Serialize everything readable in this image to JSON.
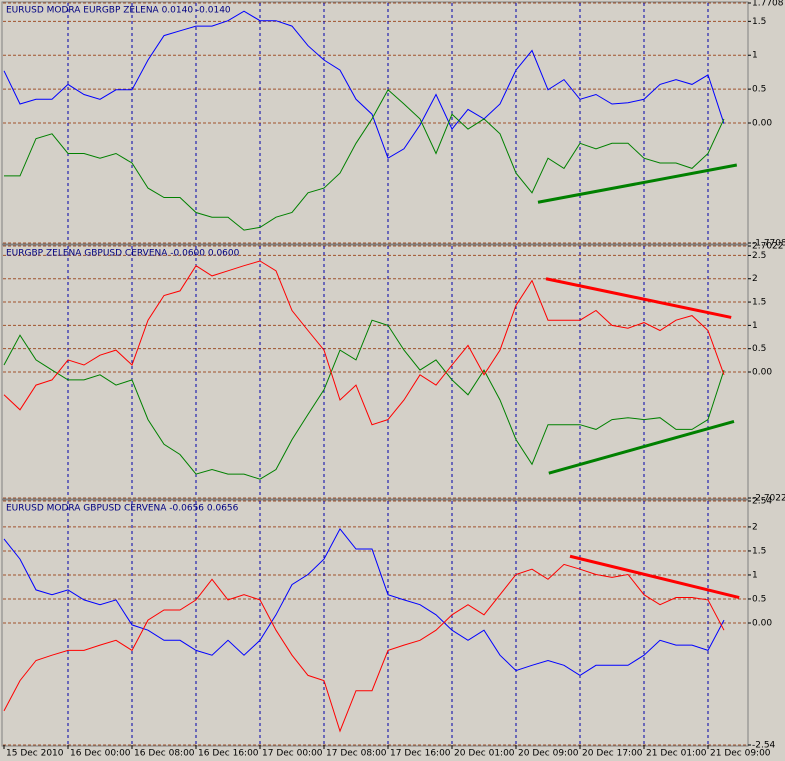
{
  "chart_data": [
    {
      "type": "line",
      "title": "EURUSD MODRA   EURGBP ZELENA  0.0140 -0.0140",
      "x": [
        0,
        2,
        4,
        6,
        8,
        10,
        12,
        14,
        16,
        18,
        20,
        22,
        24,
        26,
        28,
        30,
        32,
        34,
        36,
        38,
        40,
        42,
        44,
        46,
        48,
        50,
        52,
        54,
        56,
        58,
        60,
        62,
        64,
        66,
        68,
        70,
        72,
        74,
        76,
        78,
        80,
        82,
        84,
        86,
        88,
        90
      ],
      "series": [
        {
          "color": "#0000ff",
          "values": [
            0.77,
            0.28,
            0.35,
            0.35,
            0.57,
            0.42,
            0.35,
            0.49,
            0.49,
            0.93,
            1.29,
            1.36,
            1.43,
            1.43,
            1.51,
            1.65,
            1.51,
            1.51,
            1.43,
            1.14,
            0.93,
            0.78,
            0.35,
            0.13,
            -0.52,
            -0.38,
            -0.03,
            0.42,
            -0.09,
            0.2,
            0.06,
            0.28,
            0.78,
            1.07,
            0.49,
            0.64,
            0.35,
            0.42,
            0.28,
            0.3,
            0.35,
            0.57,
            0.64,
            0.57,
            0.71,
            -0.01
          ]
        },
        {
          "color": "#008000",
          "values": [
            -0.78,
            -0.78,
            -0.23,
            -0.16,
            -0.45,
            -0.45,
            -0.52,
            -0.45,
            -0.59,
            -0.96,
            -1.1,
            -1.1,
            -1.32,
            -1.39,
            -1.39,
            -1.58,
            -1.54,
            -1.39,
            -1.32,
            -1.03,
            -0.96,
            -0.74,
            -0.3,
            0.06,
            0.49,
            0.28,
            0.06,
            -0.45,
            0.13,
            -0.09,
            0.06,
            -0.16,
            -0.74,
            -1.03,
            -0.52,
            -0.67,
            -0.3,
            -0.38,
            -0.3,
            -0.3,
            -0.52,
            -0.59,
            -0.59,
            -0.67,
            -0.45,
            0.06
          ]
        }
      ],
      "trendlines": [
        {
          "color": "#008000",
          "x": [
            66.75,
            91.6
          ],
          "y": [
            -1.17,
            -0.62
          ]
        }
      ],
      "xlim": [
        0,
        93
      ],
      "xticks": [
        8,
        16,
        24,
        32,
        40,
        48,
        56,
        64,
        72,
        80,
        88
      ],
      "ylim": [
        -1.7708,
        1.7708
      ],
      "yticks": [
        {
          "value": 1.7708,
          "label": "1.7708"
        },
        1.5,
        1,
        0.5,
        {
          "value": 0,
          "label": "0.00"
        },
        {
          "value": -1.7708,
          "label": "-1.7708"
        }
      ],
      "grid": true
    },
    {
      "type": "line",
      "title": "EURGBP ZELENA   GBPUSD CERVENA  -0.0600 0.0600",
      "x": [
        0,
        2,
        4,
        6,
        8,
        10,
        12,
        14,
        16,
        18,
        20,
        22,
        24,
        26,
        28,
        30,
        32,
        34,
        36,
        38,
        40,
        42,
        44,
        46,
        48,
        50,
        52,
        54,
        56,
        58,
        60,
        62,
        64,
        66,
        68,
        70,
        72,
        74,
        76,
        78,
        80,
        82,
        84,
        86,
        88,
        90
      ],
      "series": [
        {
          "color": "#008000",
          "values": [
            0.15,
            0.79,
            0.26,
            0.04,
            -0.17,
            -0.17,
            -0.06,
            -0.28,
            -0.17,
            -1.02,
            -1.55,
            -1.77,
            -2.19,
            -2.09,
            -2.19,
            -2.19,
            -2.3,
            -2.09,
            -1.45,
            -0.91,
            -0.38,
            0.47,
            0.26,
            1.11,
            1.0,
            0.47,
            0.04,
            0.26,
            -0.17,
            -0.49,
            0.04,
            -0.6,
            -1.45,
            -1.98,
            -1.13,
            -1.13,
            -1.13,
            -1.23,
            -1.02,
            -0.98,
            -1.02,
            -0.98,
            -1.23,
            -1.23,
            -1.02,
            0.04
          ]
        },
        {
          "color": "#ff0000",
          "values": [
            -0.49,
            -0.81,
            -0.28,
            -0.17,
            0.26,
            0.15,
            0.36,
            0.47,
            0.15,
            1.11,
            1.64,
            1.74,
            2.28,
            2.06,
            2.17,
            2.28,
            2.38,
            2.17,
            1.32,
            0.89,
            0.47,
            -0.6,
            -0.28,
            -1.13,
            -1.02,
            -0.6,
            -0.06,
            -0.28,
            0.15,
            0.57,
            -0.06,
            0.47,
            1.43,
            1.96,
            1.11,
            1.11,
            1.11,
            1.32,
            1.0,
            0.94,
            1.06,
            0.89,
            1.11,
            1.21,
            0.89,
            -0.06
          ]
        }
      ],
      "trendlines": [
        {
          "color": "#ff0000",
          "x": [
            67.75,
            90.9
          ],
          "y": [
            2.0,
            1.17
          ]
        },
        {
          "color": "#008000",
          "x": [
            68.1,
            91.25
          ],
          "y": [
            -2.17,
            -1.06
          ]
        }
      ],
      "xlim": [
        0,
        93
      ],
      "xticks": [
        8,
        16,
        24,
        32,
        40,
        48,
        56,
        64,
        72,
        80,
        88
      ],
      "ylim": [
        -2.7022,
        2.7022
      ],
      "yticks": [
        {
          "value": 2.7022,
          "label": "2.7022"
        },
        2.5,
        2,
        1.5,
        1,
        0.5,
        {
          "value": 0,
          "label": "0.00"
        },
        {
          "value": -2.7022,
          "label": "-2.7022"
        }
      ],
      "grid": true
    },
    {
      "type": "line",
      "title": "EURUSD MODRA   GBPUSD CERVENA  -0.0656 0.0656",
      "x": [
        0,
        2,
        4,
        6,
        8,
        10,
        12,
        14,
        16,
        18,
        20,
        22,
        24,
        26,
        28,
        30,
        32,
        34,
        36,
        38,
        40,
        42,
        44,
        46,
        48,
        50,
        52,
        54,
        56,
        58,
        60,
        62,
        64,
        66,
        68,
        70,
        72,
        74,
        76,
        78,
        80,
        82,
        84,
        86,
        88,
        90
      ],
      "series": [
        {
          "color": "#0000ff",
          "values": [
            1.75,
            1.33,
            0.69,
            0.59,
            0.69,
            0.48,
            0.38,
            0.48,
            -0.04,
            -0.15,
            -0.36,
            -0.36,
            -0.57,
            -0.67,
            -0.36,
            -0.67,
            -0.36,
            0.17,
            0.8,
            1.01,
            1.33,
            1.96,
            1.54,
            1.54,
            0.59,
            0.48,
            0.38,
            0.17,
            -0.15,
            -0.36,
            -0.15,
            -0.67,
            -0.99,
            -0.88,
            -0.78,
            -0.88,
            -1.09,
            -0.88,
            -0.88,
            -0.88,
            -0.67,
            -0.36,
            -0.46,
            -0.46,
            -0.57,
            0.06
          ]
        },
        {
          "color": "#ff0000",
          "values": [
            -1.83,
            -1.2,
            -0.78,
            -0.67,
            -0.57,
            -0.57,
            -0.46,
            -0.36,
            -0.57,
            0.06,
            0.27,
            0.27,
            0.48,
            0.91,
            0.48,
            0.59,
            0.48,
            -0.15,
            -0.67,
            -1.09,
            -1.2,
            -2.25,
            -1.41,
            -1.41,
            -0.57,
            -0.46,
            -0.36,
            -0.15,
            0.17,
            0.38,
            0.17,
            0.59,
            1.01,
            1.12,
            0.91,
            1.22,
            1.12,
            1.01,
            0.95,
            1.01,
            0.59,
            0.38,
            0.53,
            0.53,
            0.48,
            -0.15
          ]
        }
      ],
      "trendlines": [
        {
          "color": "#ff0000",
          "x": [
            70.75,
            91.9
          ],
          "y": [
            1.39,
            0.53
          ]
        }
      ],
      "xlim": [
        0,
        93
      ],
      "xticks": [
        {
          "value": 0,
          "label": "15 Dec 2010"
        },
        {
          "value": 8,
          "label": "16 Dec 00:00"
        },
        {
          "value": 16,
          "label": "16 Dec 08:00"
        },
        {
          "value": 24,
          "label": "16 Dec 16:00"
        },
        {
          "value": 32,
          "label": "17 Dec 00:00"
        },
        {
          "value": 40,
          "label": "17 Dec 08:00"
        },
        {
          "value": 48,
          "label": "17 Dec 16:00"
        },
        {
          "value": 56,
          "label": "20 Dec 01:00"
        },
        {
          "value": 64,
          "label": "20 Dec 09:00"
        },
        {
          "value": 72,
          "label": "20 Dec 17:00"
        },
        {
          "value": 80,
          "label": "21 Dec 01:00"
        },
        {
          "value": 88,
          "label": "21 Dec 09:00"
        }
      ],
      "ylim": [
        -2.54,
        2.54
      ],
      "yticks": [
        {
          "value": 2.54,
          "label": "2.54"
        },
        2,
        1.5,
        1,
        0.5,
        {
          "value": 0,
          "label": "0.00"
        },
        {
          "value": -2.54,
          "label": "-2.54"
        }
      ],
      "grid": true
    }
  ]
}
